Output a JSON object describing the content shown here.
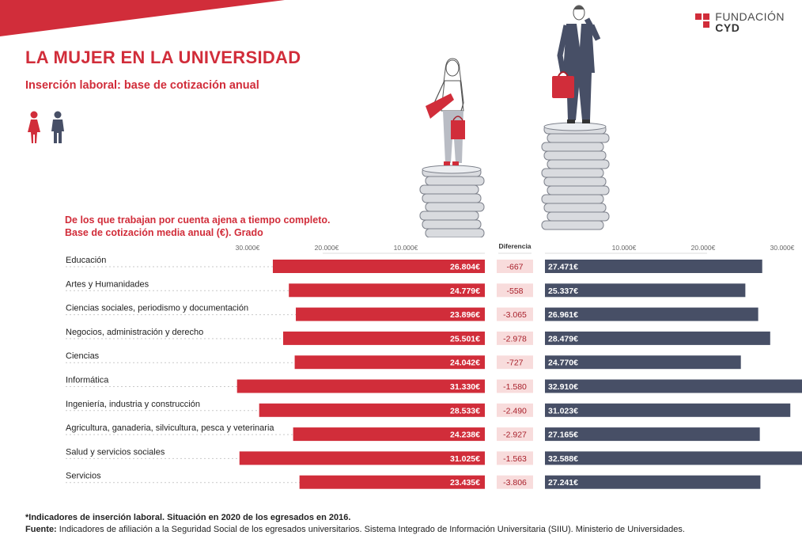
{
  "brand": {
    "line1": "FUNDACIÓN",
    "line2": "CYD"
  },
  "title": "LA MUJER EN LA UNIVERSIDAD",
  "subtitle": "Inserción laboral: base de cotización anual",
  "colors": {
    "female": "#d12d3a",
    "male": "#474f66",
    "diff_bg": "#f8dcdc",
    "accent": "#d12d3a"
  },
  "icons": [
    "female-icon",
    "male-icon"
  ],
  "chart_head": {
    "line1": "De los que trabajan por cuenta ajena a tiempo completo.",
    "line2": "Base de cotización media anual (€). Grado"
  },
  "chart_data": {
    "type": "bar",
    "categories": [
      "Educación",
      "Artes y Humanidades",
      "Ciencias sociales, periodismo y documentación",
      "Negocios, administración y derecho",
      "Ciencias",
      "Informática",
      "Ingeniería, industria y construcción",
      "Agricultura, ganaderia, silvicultura, pesca y veterinaria",
      "Salud y servicios sociales",
      "Servicios"
    ],
    "series": [
      {
        "values": [
          26804,
          24779,
          23896,
          25501,
          24042,
          31330,
          28533,
          24238,
          31025,
          23435
        ],
        "labels": [
          "26.804€",
          "24.779€",
          "23.896€",
          "25.501€",
          "24.042€",
          "31.330€",
          "28.533€",
          "24.238€",
          "31.025€",
          "23.435€"
        ]
      },
      {
        "values": [
          27471,
          25337,
          26961,
          28479,
          24770,
          32910,
          31023,
          27165,
          32588,
          27241
        ],
        "labels": [
          "27.471€",
          "25.337€",
          "26.961€",
          "28.479€",
          "24.770€",
          "32.910€",
          "31.023€",
          "27.165€",
          "32.588€",
          "27.241€"
        ]
      }
    ],
    "difference": {
      "title": "Diferencia",
      "values": [
        -667,
        -558,
        -3065,
        -2978,
        -727,
        -1580,
        -2490,
        -2927,
        -1563,
        -3806
      ],
      "labels": [
        "-667",
        "-558",
        "-3.065",
        "-2.978",
        "-727",
        "-1.580",
        "-2.490",
        "-2.927",
        "-1.563",
        "-3.806"
      ]
    },
    "left_axis_ticks": [
      "30.000€",
      "20.000€",
      "10.000€"
    ],
    "right_axis_ticks": [
      "10.000€",
      "20.000€",
      "30.000€"
    ],
    "tick_values": [
      30000,
      20000,
      10000
    ],
    "xlim": [
      0,
      34000
    ],
    "grid": false
  },
  "footnote": {
    "line1": "*Indicadores de inserción laboral. Situación en 2020 de los egresados en 2016.",
    "source_label": "Fuente:",
    "source_text": " Indicadores de afiliación a la Seguridad Social de los egresados universitarios. Sistema Integrado de Información Universitaria (SIIU). Ministerio de Universidades."
  }
}
